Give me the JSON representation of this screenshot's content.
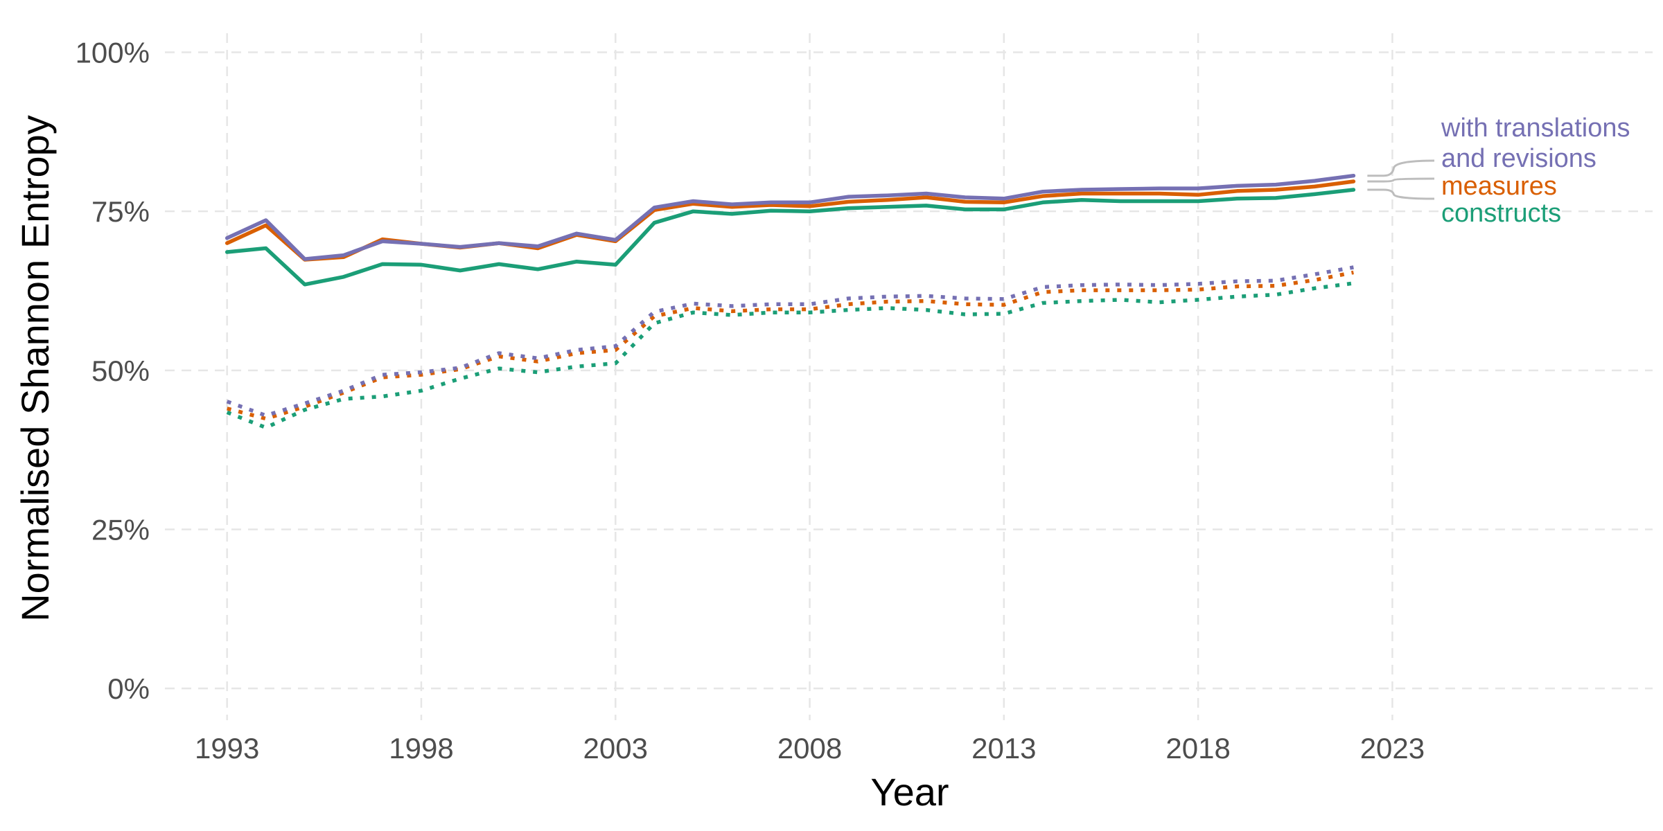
{
  "chart_data": {
    "type": "line",
    "xlabel": "Year",
    "ylabel": "Normalised Shannon Entropy",
    "xlim": [
      1991.4,
      2029.7
    ],
    "ylim": [
      -0.05,
      1.03
    ],
    "x_ticks": [
      1993,
      1998,
      2003,
      2008,
      2013,
      2018,
      2023
    ],
    "y_ticks": [
      0,
      0.25,
      0.5,
      0.75,
      1.0
    ],
    "y_tick_labels": [
      "0%",
      "25%",
      "50%",
      "75%",
      "100%"
    ],
    "grid": true,
    "x": [
      1993,
      1994,
      1995,
      1996,
      1997,
      1998,
      1999,
      2000,
      2001,
      2002,
      2003,
      2004,
      2005,
      2006,
      2007,
      2008,
      2009,
      2010,
      2011,
      2012,
      2013,
      2014,
      2015,
      2016,
      2017,
      2018,
      2019,
      2020,
      2021,
      2022
    ],
    "series": [
      {
        "name": "with translations and revisions",
        "color": "#7570b3",
        "style": "solid",
        "values": [
          0.708,
          0.736,
          0.675,
          0.681,
          0.703,
          0.699,
          0.694,
          0.7,
          0.695,
          0.715,
          0.705,
          0.756,
          0.766,
          0.761,
          0.764,
          0.764,
          0.773,
          0.775,
          0.778,
          0.772,
          0.77,
          0.781,
          0.784,
          0.785,
          0.786,
          0.786,
          0.79,
          0.792,
          0.798,
          0.806
        ]
      },
      {
        "name": "measures",
        "color": "#d95f02",
        "style": "solid",
        "values": [
          0.7,
          0.728,
          0.674,
          0.678,
          0.706,
          0.699,
          0.693,
          0.7,
          0.692,
          0.713,
          0.703,
          0.752,
          0.762,
          0.757,
          0.76,
          0.758,
          0.765,
          0.768,
          0.772,
          0.765,
          0.764,
          0.774,
          0.778,
          0.778,
          0.778,
          0.776,
          0.782,
          0.784,
          0.789,
          0.797
        ]
      },
      {
        "name": "constructs",
        "color": "#1b9e77",
        "style": "solid",
        "values": [
          0.686,
          0.692,
          0.635,
          0.647,
          0.667,
          0.666,
          0.657,
          0.667,
          0.659,
          0.671,
          0.666,
          0.732,
          0.75,
          0.746,
          0.751,
          0.75,
          0.755,
          0.757,
          0.759,
          0.753,
          0.753,
          0.764,
          0.768,
          0.766,
          0.766,
          0.766,
          0.77,
          0.771,
          0.777,
          0.784
        ]
      },
      {
        "name": "with translations and revisions (dotted)",
        "color": "#7570b3",
        "style": "dotted",
        "values": [
          0.451,
          0.429,
          0.448,
          0.468,
          0.493,
          0.497,
          0.504,
          0.527,
          0.519,
          0.532,
          0.538,
          0.592,
          0.605,
          0.601,
          0.604,
          0.604,
          0.613,
          0.616,
          0.617,
          0.613,
          0.612,
          0.631,
          0.634,
          0.635,
          0.634,
          0.636,
          0.64,
          0.641,
          0.651,
          0.662
        ]
      },
      {
        "name": "measures (dotted)",
        "color": "#d95f02",
        "style": "dotted",
        "values": [
          0.44,
          0.424,
          0.443,
          0.465,
          0.489,
          0.493,
          0.502,
          0.522,
          0.514,
          0.527,
          0.532,
          0.585,
          0.598,
          0.593,
          0.596,
          0.596,
          0.604,
          0.608,
          0.609,
          0.604,
          0.603,
          0.623,
          0.626,
          0.626,
          0.626,
          0.627,
          0.632,
          0.633,
          0.642,
          0.654
        ]
      },
      {
        "name": "constructs (dotted)",
        "color": "#1b9e77",
        "style": "dotted",
        "values": [
          0.434,
          0.41,
          0.438,
          0.455,
          0.459,
          0.468,
          0.487,
          0.503,
          0.497,
          0.506,
          0.511,
          0.574,
          0.591,
          0.587,
          0.591,
          0.591,
          0.595,
          0.598,
          0.595,
          0.588,
          0.589,
          0.606,
          0.609,
          0.611,
          0.607,
          0.611,
          0.616,
          0.619,
          0.629,
          0.637
        ]
      }
    ],
    "legend": {
      "placement": "right-of-line-ends",
      "entries": [
        {
          "lines": [
            "with translations",
            "and revisions"
          ],
          "color": "#7570b3"
        },
        {
          "lines": [
            "measures"
          ],
          "color": "#d95f02"
        },
        {
          "lines": [
            "constructs"
          ],
          "color": "#1b9e77"
        }
      ]
    }
  }
}
